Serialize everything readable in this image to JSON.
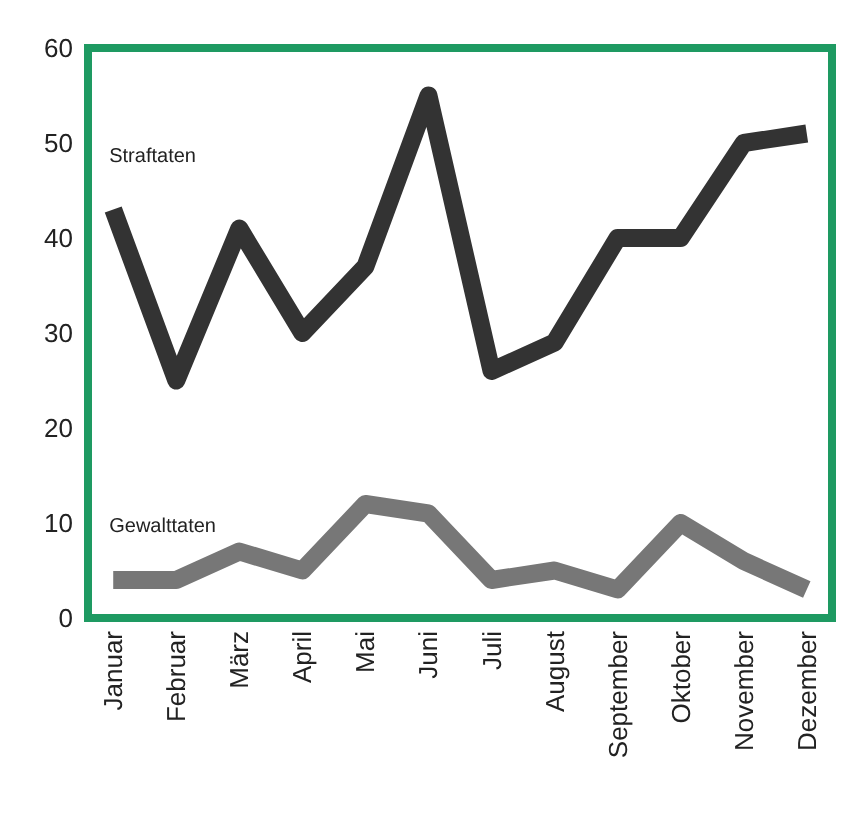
{
  "chart_data": {
    "type": "line",
    "categories": [
      "Januar",
      "Februar",
      "März",
      "April",
      "Mai",
      "Juni",
      "Juli",
      "August",
      "September",
      "Oktober",
      "November",
      "Dezember"
    ],
    "series": [
      {
        "name": "Straftaten",
        "color": "#333333",
        "values": [
          43,
          25,
          41,
          30,
          37,
          55,
          26,
          29,
          40,
          40,
          50,
          51
        ]
      },
      {
        "name": "Gewalttaten",
        "color": "#777777",
        "values": [
          4,
          4,
          7,
          5,
          12,
          11,
          4,
          5,
          3,
          10,
          6,
          3
        ]
      }
    ],
    "ylim": [
      0,
      60
    ],
    "yticks": [
      0,
      10,
      20,
      30,
      40,
      50,
      60
    ],
    "grid": false,
    "legend": false,
    "marker": "none",
    "line_style": "solid"
  }
}
